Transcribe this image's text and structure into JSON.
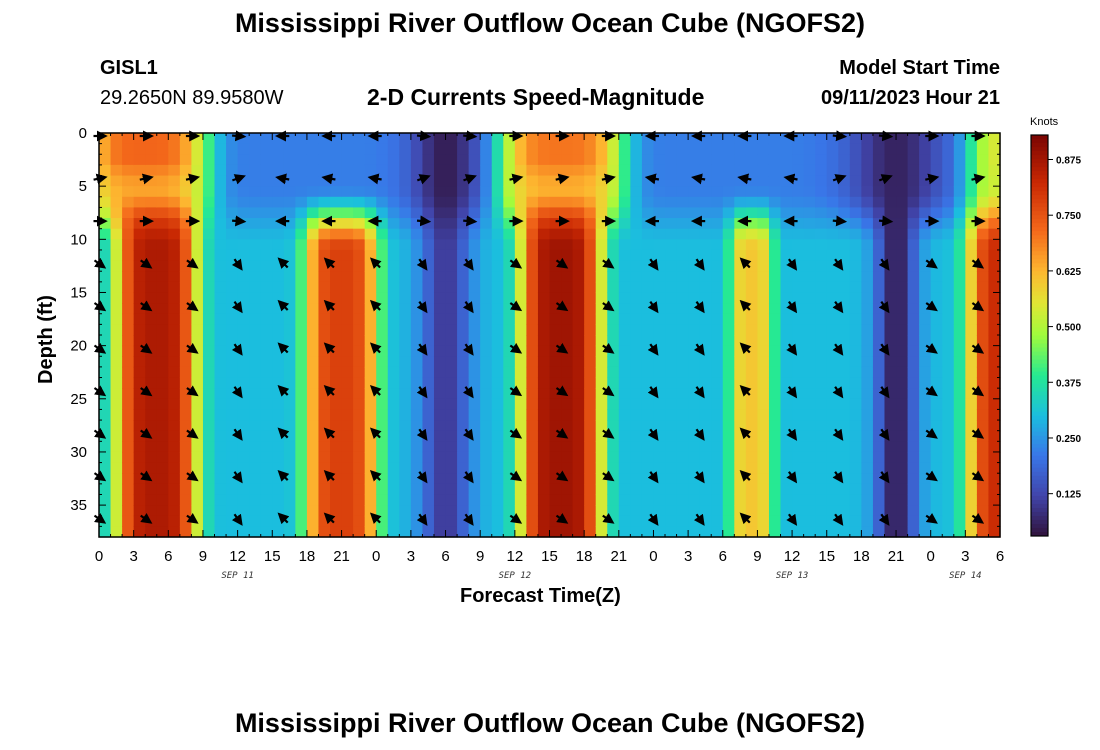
{
  "page": {
    "title": "Mississippi River Outflow Ocean Cube (NGOFS2)",
    "title_repeat": "Mississippi River Outflow Ocean Cube (NGOFS2)",
    "station_id": "GISL1",
    "coordinates": "29.2650N  89.9580W",
    "plot_subtitle": "2-D Currents Speed-Magnitude",
    "model_start_label": "Model Start Time",
    "model_start_value": "09/11/2023 Hour 21"
  },
  "chart_data": {
    "type": "heatmap",
    "title": "2-D Currents Speed-Magnitude",
    "xlabel": "Forecast Time(Z)",
    "ylabel": "Depth (ft)",
    "x_range_hours": [
      0,
      78
    ],
    "y_range_ft": [
      0,
      38
    ],
    "x_ticks": [
      {
        "hour": 0,
        "label": "0"
      },
      {
        "hour": 3,
        "label": "3"
      },
      {
        "hour": 6,
        "label": "6"
      },
      {
        "hour": 9,
        "label": "9"
      },
      {
        "hour": 12,
        "label": "12"
      },
      {
        "hour": 15,
        "label": "15"
      },
      {
        "hour": 18,
        "label": "18"
      },
      {
        "hour": 21,
        "label": "21"
      },
      {
        "hour": 24,
        "label": "0"
      },
      {
        "hour": 27,
        "label": "3"
      },
      {
        "hour": 30,
        "label": "6"
      },
      {
        "hour": 33,
        "label": "9"
      },
      {
        "hour": 36,
        "label": "12"
      },
      {
        "hour": 39,
        "label": "15"
      },
      {
        "hour": 42,
        "label": "18"
      },
      {
        "hour": 45,
        "label": "21"
      },
      {
        "hour": 48,
        "label": "0"
      },
      {
        "hour": 51,
        "label": "3"
      },
      {
        "hour": 54,
        "label": "6"
      },
      {
        "hour": 57,
        "label": "9"
      },
      {
        "hour": 60,
        "label": "12"
      },
      {
        "hour": 63,
        "label": "15"
      },
      {
        "hour": 66,
        "label": "18"
      },
      {
        "hour": 69,
        "label": "21"
      },
      {
        "hour": 72,
        "label": "0"
      },
      {
        "hour": 75,
        "label": "3"
      },
      {
        "hour": 78,
        "label": "6"
      }
    ],
    "y_ticks": [
      0,
      5,
      10,
      15,
      20,
      25,
      30,
      35
    ],
    "day_labels": [
      {
        "hour": 12,
        "label": "SEP 11"
      },
      {
        "hour": 36,
        "label": "SEP 12"
      },
      {
        "hour": 60,
        "label": "SEP 13"
      },
      {
        "hour": 75,
        "label": "SEP 14"
      }
    ],
    "colorbar": {
      "unit": "Knots",
      "ticks": [
        "0.125",
        "0.250",
        "0.375",
        "0.500",
        "0.625",
        "0.750",
        "0.875"
      ],
      "tick_values": [
        0.125,
        0.25,
        0.375,
        0.5,
        0.625,
        0.75,
        0.875
      ],
      "range": [
        0.03,
        0.93
      ]
    },
    "speed_model": {
      "bottom_peaks": [
        {
          "hour": 5,
          "speed": 0.86,
          "width_h": 3.6
        },
        {
          "hour": 21,
          "speed": 0.78,
          "width_h": 3.2
        },
        {
          "hour": 40,
          "speed": 0.88,
          "width_h": 3.6
        },
        {
          "hour": 56.5,
          "speed": 0.6,
          "width_h": 1.9
        },
        {
          "hour": 78.5,
          "speed": 0.82,
          "width_h": 3.4
        }
      ],
      "bottom_base": 0.3,
      "bottom_lows": [
        {
          "hour": 30,
          "speed": 0.1,
          "width_h": 2.2
        },
        {
          "hour": 69,
          "speed": 0.05,
          "width_h": 1.8
        }
      ],
      "surface_peaks": [
        {
          "hour": 4,
          "speed": 0.72,
          "width_h": 5.5
        },
        {
          "hour": 40,
          "speed": 0.7,
          "width_h": 5.5
        },
        {
          "hour": 79,
          "speed": 0.55,
          "width_h": 4
        }
      ],
      "surface_base": 0.22,
      "surface_lows": [
        {
          "hour": 30,
          "speed": 0.05,
          "width_h": 3
        },
        {
          "hour": 69,
          "speed": 0.06,
          "width_h": 4
        }
      ],
      "mid_depth_ft": 7,
      "transition_top_ft": 5,
      "transition_bottom_ft": 11
    },
    "vector_grid": {
      "hours": [
        0,
        4,
        8,
        12,
        16,
        20,
        24,
        28,
        32,
        36,
        40,
        44,
        48,
        52,
        56,
        60,
        64,
        68,
        72,
        76
      ],
      "depths_ft": [
        0,
        4,
        8,
        12,
        16,
        20,
        24,
        28,
        32,
        36
      ]
    },
    "vectors": {
      "surface_east_hours": [
        [
          0,
          10
        ],
        [
          36,
          45
        ],
        [
          72,
          79
        ]
      ],
      "surface_west_hours": [
        [
          13,
          27
        ],
        [
          48,
          61
        ]
      ],
      "bottom_southeast_hours": [
        [
          0,
          10
        ],
        [
          36,
          46
        ],
        [
          72,
          79
        ]
      ],
      "bottom_northwest_hours": [
        [
          16,
          24
        ],
        [
          54,
          58
        ]
      ]
    }
  }
}
